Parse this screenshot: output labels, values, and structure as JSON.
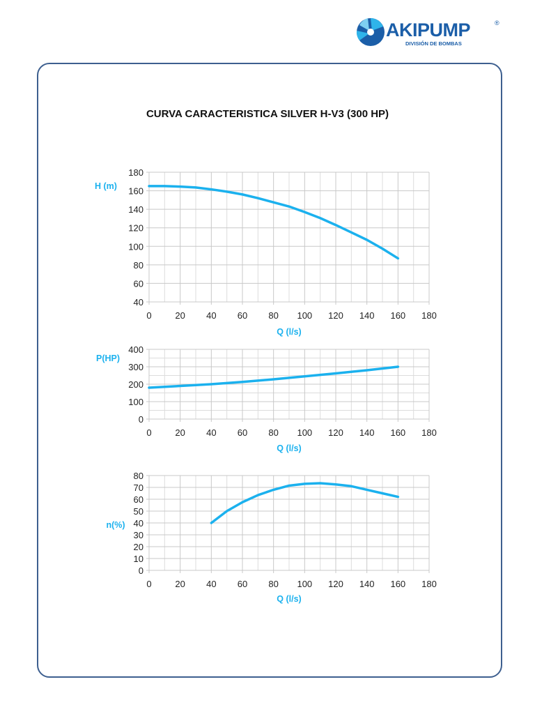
{
  "logo": {
    "brand": "AKIPUMP",
    "registered": "®",
    "subtitle": "DIVISIÓN DE BOMBAS"
  },
  "title": "CURVA CARACTERISTICA SILVER H-V3 (300 HP)",
  "colors": {
    "curve": "#1bb1ee",
    "frame": "#3d5f8f",
    "grid": "#c8c8c8",
    "axis_label": "#1bb1ee"
  },
  "chart_data": [
    {
      "type": "line",
      "xlabel": "Q (l/s)",
      "ylabel": "H (m)",
      "xlim": [
        0,
        180
      ],
      "ylim": [
        40,
        180
      ],
      "xticks": [
        0,
        20,
        40,
        60,
        80,
        100,
        120,
        140,
        160,
        180
      ],
      "yticks": [
        40,
        60,
        80,
        100,
        120,
        140,
        160,
        180
      ],
      "grid": true,
      "x": [
        0,
        10,
        20,
        30,
        40,
        50,
        60,
        70,
        80,
        90,
        100,
        110,
        120,
        130,
        140,
        150,
        160
      ],
      "y": [
        165,
        165,
        164.5,
        163.5,
        161.5,
        159,
        156,
        152,
        147.5,
        143,
        137,
        130.5,
        123,
        115,
        107,
        97.5,
        87
      ]
    },
    {
      "type": "line",
      "xlabel": "Q (l/s)",
      "ylabel": "P(HP)",
      "xlim": [
        0,
        180
      ],
      "ylim": [
        0,
        400
      ],
      "xticks": [
        0,
        20,
        40,
        60,
        80,
        100,
        120,
        140,
        160,
        180
      ],
      "yticks": [
        0,
        100,
        200,
        300,
        400
      ],
      "grid": true,
      "x": [
        0,
        20,
        40,
        60,
        80,
        100,
        120,
        140,
        160
      ],
      "y": [
        180,
        190,
        200,
        213,
        228,
        245,
        262,
        280,
        300
      ]
    },
    {
      "type": "line",
      "xlabel": "Q (l/s)",
      "ylabel": "n(%)",
      "xlim": [
        0,
        180
      ],
      "ylim": [
        0,
        80
      ],
      "xticks": [
        0,
        20,
        40,
        60,
        80,
        100,
        120,
        140,
        160,
        180
      ],
      "yticks": [
        0,
        10,
        20,
        30,
        40,
        50,
        60,
        70,
        80
      ],
      "grid": true,
      "x": [
        40,
        50,
        60,
        70,
        80,
        90,
        100,
        110,
        120,
        130,
        140,
        150,
        160
      ],
      "y": [
        40,
        50,
        57.5,
        63.5,
        68,
        71.5,
        73,
        73.5,
        72.5,
        71,
        68,
        65,
        62
      ]
    }
  ]
}
